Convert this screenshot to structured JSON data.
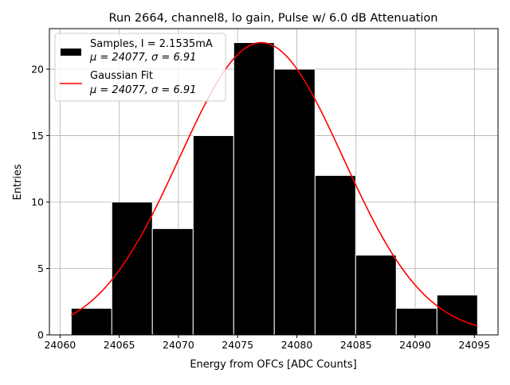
{
  "chart_data": {
    "type": "bar",
    "title": "Run 2664, channel8, lo gain, Pulse w/ 6.0 dB Attenuation",
    "xlabel": "Energy from OFCs [ADC Counts]",
    "ylabel": "Entries",
    "xlim": [
      24059.1,
      24097.0
    ],
    "ylim": [
      0,
      23.05
    ],
    "xticks": [
      24060,
      24065,
      24070,
      24075,
      24080,
      24085,
      24090,
      24095
    ],
    "yticks": [
      0,
      5,
      10,
      15,
      20
    ],
    "grid": true,
    "bin_edges": [
      24060.94,
      24064.37,
      24067.8,
      24071.24,
      24074.67,
      24078.1,
      24081.54,
      24084.97,
      24088.4,
      24091.84,
      24095.27
    ],
    "values": [
      2,
      10,
      8,
      15,
      22,
      20,
      12,
      6,
      2,
      3
    ],
    "fit": {
      "type": "gaussian",
      "mu": 24077,
      "sigma": 6.91,
      "amplitude": 22.0,
      "color": "#ff0000"
    },
    "bar_color": "#000000",
    "legend": {
      "placement": "top-left",
      "entries": [
        {
          "line1": "Samples, I = 2.1535mA",
          "line2": "μ = 24077, σ = 6.91"
        },
        {
          "line1": "Gaussian Fit",
          "line2": "μ = 24077, σ = 6.91"
        }
      ]
    }
  }
}
